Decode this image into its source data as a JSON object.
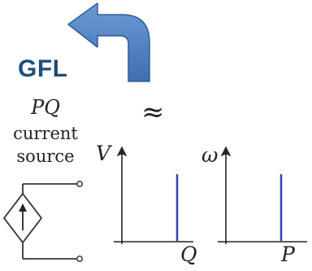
{
  "label_gfl": "GFL",
  "source_symbol": "PQ",
  "source_text_line1": "current",
  "source_text_line2": "source",
  "approx_symbol": "≈",
  "chart_data": [
    {
      "type": "line",
      "xlabel": "Q",
      "ylabel": "V",
      "series_color": "#3b47b7",
      "description_of_mark": "vertical line at a fixed Q value"
    },
    {
      "type": "line",
      "xlabel": "P",
      "ylabel": "ω",
      "series_color": "#3b47b7",
      "description_of_mark": "vertical line at a fixed P value"
    }
  ],
  "arrow_color": "#4a7ebb",
  "arrow_outline_color": "#2f5d94",
  "text_color": "#1f4e79"
}
